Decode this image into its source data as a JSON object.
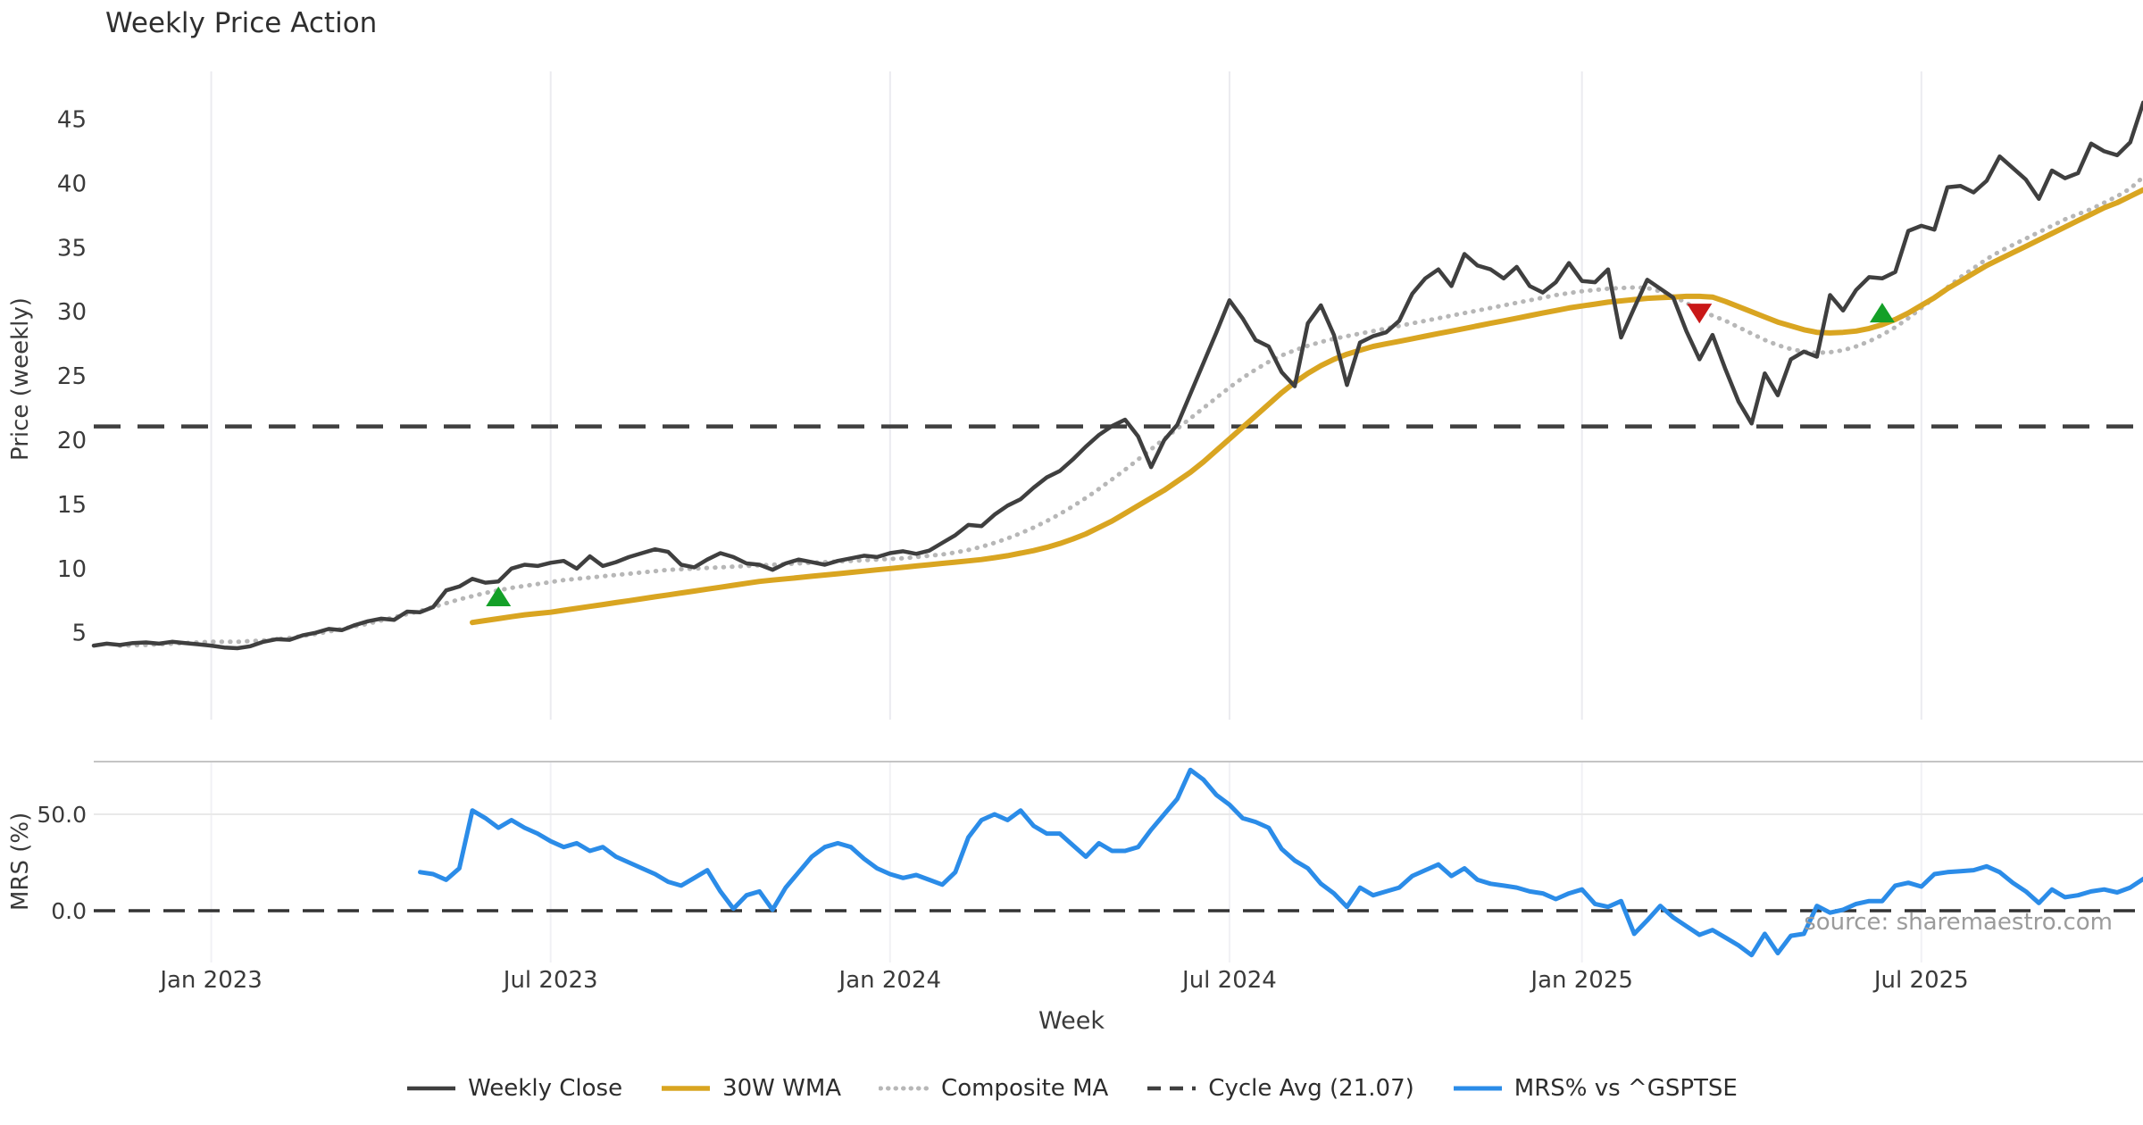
{
  "chart_data": {
    "type": "line",
    "title": "Weekly Price Action",
    "source": "source: sharemaestro.com",
    "x": {
      "label": "Week",
      "start_date": "2022-10-31",
      "freq": "weekly",
      "n_points": 158,
      "ticks": [
        {
          "label": "Jan 2023",
          "date": "2023-01-02"
        },
        {
          "label": "Jul 2023",
          "date": "2023-07-03"
        },
        {
          "label": "Jan 2024",
          "date": "2024-01-01"
        },
        {
          "label": "Jul 2024",
          "date": "2024-07-01"
        },
        {
          "label": "Jan 2025",
          "date": "2025-01-06"
        },
        {
          "label": "Jul 2025",
          "date": "2025-07-07"
        }
      ]
    },
    "panels": [
      {
        "ylabel": "Price (weekly)",
        "yticks": [
          5,
          10,
          15,
          20,
          25,
          30,
          35,
          40,
          45
        ],
        "ylim": [
          1.5,
          49
        ]
      },
      {
        "ylabel": "MRS (%)",
        "yticks": [
          {
            "label": "50.0",
            "value": 50
          },
          {
            "label": "0.0",
            "value": 0
          }
        ],
        "ylim": [
          -27,
          77
        ]
      }
    ],
    "series": [
      {
        "name": "Weekly Close",
        "panel": 0,
        "style": "solid",
        "color": "#3f3f3f",
        "width": 4.5,
        "values": [
          4.0,
          4.15,
          4.05,
          4.2,
          4.25,
          4.15,
          4.3,
          4.2,
          4.1,
          4.0,
          3.85,
          3.8,
          3.95,
          4.3,
          4.5,
          4.45,
          4.8,
          5.0,
          5.3,
          5.2,
          5.6,
          5.9,
          6.1,
          6.0,
          6.65,
          6.6,
          7.0,
          8.3,
          8.6,
          9.2,
          8.9,
          9.0,
          10.0,
          10.3,
          10.2,
          10.45,
          10.6,
          10.0,
          10.95,
          10.2,
          10.5,
          10.9,
          11.2,
          11.5,
          11.3,
          10.3,
          10.1,
          10.7,
          11.2,
          10.9,
          10.4,
          10.3,
          9.9,
          10.4,
          10.7,
          10.5,
          10.3,
          10.6,
          10.8,
          11.0,
          10.9,
          11.2,
          11.35,
          11.15,
          11.4,
          12.0,
          12.6,
          13.4,
          13.3,
          14.2,
          14.9,
          15.4,
          16.3,
          17.1,
          17.6,
          18.5,
          19.5,
          20.4,
          21.1,
          21.6,
          20.3,
          17.9,
          20.0,
          21.2,
          23.6,
          26.0,
          28.4,
          30.9,
          29.5,
          27.8,
          27.3,
          25.3,
          24.2,
          29.1,
          30.5,
          28.2,
          24.3,
          27.6,
          28.1,
          28.4,
          29.3,
          31.4,
          32.6,
          33.3,
          32.0,
          34.5,
          33.6,
          33.3,
          32.6,
          33.5,
          32.0,
          31.5,
          32.3,
          33.8,
          32.4,
          32.3,
          33.3,
          28.0,
          30.3,
          32.5,
          31.8,
          31.1,
          28.5,
          26.3,
          28.2,
          25.5,
          23.0,
          21.3,
          25.2,
          23.5,
          26.3,
          26.9,
          26.5,
          31.3,
          30.1,
          31.7,
          32.7,
          32.6,
          33.1,
          36.3,
          36.7,
          36.4,
          39.7,
          39.8,
          39.3,
          40.2,
          42.1,
          41.2,
          40.3,
          38.8,
          41.0,
          40.4,
          40.8,
          43.1,
          42.5,
          42.2,
          43.2,
          46.3
        ]
      },
      {
        "name": "30W WMA",
        "panel": 0,
        "style": "solid",
        "color": "#d9a521",
        "width": 6,
        "values": [
          null,
          null,
          null,
          null,
          null,
          null,
          null,
          null,
          null,
          null,
          null,
          null,
          null,
          null,
          null,
          null,
          null,
          null,
          null,
          null,
          null,
          null,
          null,
          null,
          null,
          null,
          null,
          null,
          null,
          5.8,
          5.95,
          6.1,
          6.25,
          6.4,
          6.5,
          6.6,
          6.75,
          6.9,
          7.05,
          7.2,
          7.35,
          7.5,
          7.65,
          7.8,
          7.95,
          8.1,
          8.25,
          8.4,
          8.55,
          8.7,
          8.85,
          9.0,
          9.1,
          9.2,
          9.3,
          9.4,
          9.5,
          9.6,
          9.7,
          9.8,
          9.9,
          10.0,
          10.1,
          10.2,
          10.3,
          10.4,
          10.5,
          10.6,
          10.7,
          10.85,
          11.0,
          11.2,
          11.4,
          11.65,
          11.95,
          12.3,
          12.7,
          13.2,
          13.7,
          14.3,
          14.9,
          15.5,
          16.1,
          16.8,
          17.5,
          18.3,
          19.2,
          20.1,
          21.0,
          21.9,
          22.8,
          23.7,
          24.5,
          25.2,
          25.8,
          26.3,
          26.7,
          27.0,
          27.3,
          27.5,
          27.7,
          27.9,
          28.1,
          28.3,
          28.5,
          28.7,
          28.9,
          29.1,
          29.3,
          29.5,
          29.7,
          29.9,
          30.1,
          30.3,
          30.45,
          30.6,
          30.75,
          30.85,
          30.95,
          31.05,
          31.1,
          31.15,
          31.2,
          31.2,
          31.15,
          30.8,
          30.4,
          30.0,
          29.6,
          29.2,
          28.9,
          28.6,
          28.4,
          28.35,
          28.4,
          28.5,
          28.7,
          29.0,
          29.4,
          29.9,
          30.5,
          31.1,
          31.8,
          32.4,
          33.0,
          33.6,
          34.1,
          34.6,
          35.1,
          35.6,
          36.1,
          36.6,
          37.1,
          37.6,
          38.1,
          38.5,
          39.0,
          39.5
        ]
      },
      {
        "name": "Composite MA",
        "panel": 0,
        "style": "dotted",
        "color": "#b7b7b7",
        "width": 5,
        "values": [
          null,
          null,
          4.0,
          4.02,
          4.05,
          4.1,
          4.15,
          4.2,
          4.25,
          4.3,
          4.3,
          4.3,
          4.35,
          4.4,
          4.5,
          4.6,
          4.75,
          4.9,
          5.1,
          5.3,
          5.5,
          5.7,
          5.95,
          6.2,
          6.45,
          6.7,
          7.0,
          7.3,
          7.6,
          7.85,
          8.1,
          8.3,
          8.5,
          8.65,
          8.8,
          8.95,
          9.1,
          9.2,
          9.3,
          9.4,
          9.5,
          9.6,
          9.7,
          9.8,
          9.9,
          9.95,
          10.0,
          10.05,
          10.1,
          10.15,
          10.2,
          10.25,
          10.3,
          10.35,
          10.4,
          10.45,
          10.5,
          10.55,
          10.6,
          10.65,
          10.7,
          10.75,
          10.8,
          10.9,
          11.0,
          11.1,
          11.25,
          11.45,
          11.7,
          12.0,
          12.35,
          12.75,
          13.2,
          13.7,
          14.25,
          14.85,
          15.5,
          16.2,
          16.95,
          17.7,
          18.5,
          19.3,
          20.1,
          20.9,
          21.7,
          22.5,
          23.3,
          24.1,
          24.85,
          25.5,
          26.1,
          26.6,
          27.0,
          27.35,
          27.65,
          27.9,
          28.1,
          28.3,
          28.5,
          28.7,
          28.9,
          29.1,
          29.3,
          29.5,
          29.7,
          29.9,
          30.1,
          30.3,
          30.5,
          30.7,
          30.9,
          31.1,
          31.3,
          31.45,
          31.6,
          31.7,
          31.8,
          31.85,
          31.9,
          31.85,
          31.6,
          31.2,
          30.7,
          30.1,
          29.7,
          29.3,
          28.8,
          28.3,
          27.8,
          27.4,
          27.1,
          26.9,
          26.8,
          26.85,
          27.0,
          27.3,
          27.7,
          28.2,
          28.8,
          29.5,
          30.3,
          31.1,
          31.9,
          32.7,
          33.4,
          34.1,
          34.7,
          35.2,
          35.7,
          36.2,
          36.7,
          37.2,
          37.6,
          38.0,
          38.5,
          39.0,
          39.6,
          40.5
        ]
      },
      {
        "name": "Cycle Avg (21.07)",
        "panel": 0,
        "style": "dashed",
        "color": "#3f3f3f",
        "width": 4.5,
        "hline": 21.07
      },
      {
        "name": "MRS% vs ^GSPTSE",
        "panel": 1,
        "style": "solid",
        "color": "#2b8ce8",
        "width": 5,
        "values": [
          null,
          null,
          null,
          null,
          null,
          null,
          null,
          null,
          null,
          null,
          null,
          null,
          null,
          null,
          null,
          null,
          null,
          null,
          null,
          null,
          null,
          null,
          null,
          null,
          null,
          20,
          19,
          16,
          22,
          52,
          48,
          43,
          47,
          43,
          40,
          36,
          33,
          35,
          31,
          33,
          28,
          25,
          22,
          19,
          15,
          13,
          17,
          21,
          10,
          1,
          8,
          10,
          0.5,
          12,
          20,
          28,
          33,
          35,
          33,
          27,
          22,
          19,
          17,
          18.5,
          16,
          13.5,
          20,
          38,
          47,
          50,
          47,
          52,
          44,
          40,
          40,
          34,
          28,
          35,
          31,
          31,
          33,
          42,
          50,
          58,
          73,
          68,
          60,
          55,
          48,
          46,
          43,
          32,
          26,
          22,
          14,
          9,
          2,
          12,
          8,
          10,
          12,
          18,
          21,
          24,
          18,
          22,
          16,
          14,
          13,
          12,
          10,
          9,
          6,
          9,
          11,
          3.5,
          2,
          5,
          -12,
          -5,
          2.5,
          -3.5,
          -8,
          -12.5,
          -10,
          -14,
          -18,
          -23,
          -12,
          -22,
          -13,
          -12,
          2.5,
          -1,
          0.5,
          3.5,
          5,
          5,
          13,
          14.5,
          12.5,
          19,
          20,
          20.5,
          21,
          23,
          20,
          14.5,
          10,
          4,
          11,
          7,
          8,
          10,
          11,
          9.5,
          12,
          16.5
        ]
      }
    ],
    "zero_line_panel2": {
      "value": 0,
      "style": "dashed",
      "color": "#333333"
    },
    "markers": [
      {
        "index": 31,
        "value": 7.7,
        "type": "buy",
        "shape": "triangle-up",
        "color": "#14a028"
      },
      {
        "index": 123,
        "value": 30.0,
        "type": "sell",
        "shape": "triangle-down",
        "color": "#c91818"
      },
      {
        "index": 137,
        "value": 29.8,
        "type": "buy",
        "shape": "triangle-up",
        "color": "#14a028"
      }
    ],
    "legend_position": "bottom-center",
    "grid": {
      "vertical": true,
      "panel2_horizontal_at": 50
    }
  }
}
